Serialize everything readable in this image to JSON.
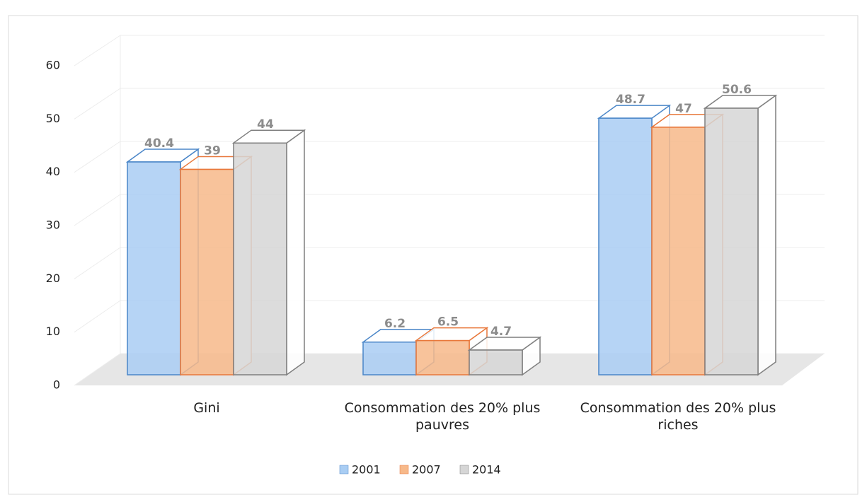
{
  "chart_data": {
    "type": "bar3d",
    "categories": [
      "Gini",
      "Consommation des 20% plus pauvres",
      "Consommation des 20% plus riches"
    ],
    "series": [
      {
        "name": "2001",
        "color": "#a9cdf3",
        "stroke": "#4a86c8",
        "values": [
          40.4,
          6.2,
          48.7
        ]
      },
      {
        "name": "2007",
        "color": "#f7b98a",
        "stroke": "#e8773a",
        "values": [
          39,
          6.5,
          47
        ]
      },
      {
        "name": "2014",
        "color": "#d6d6d6",
        "stroke": "#7f7f7f",
        "values": [
          44,
          4.7,
          50.6
        ]
      }
    ],
    "ylim": [
      0,
      60
    ],
    "yticks": [
      0,
      10,
      20,
      30,
      40,
      50,
      60
    ],
    "grid": true
  }
}
